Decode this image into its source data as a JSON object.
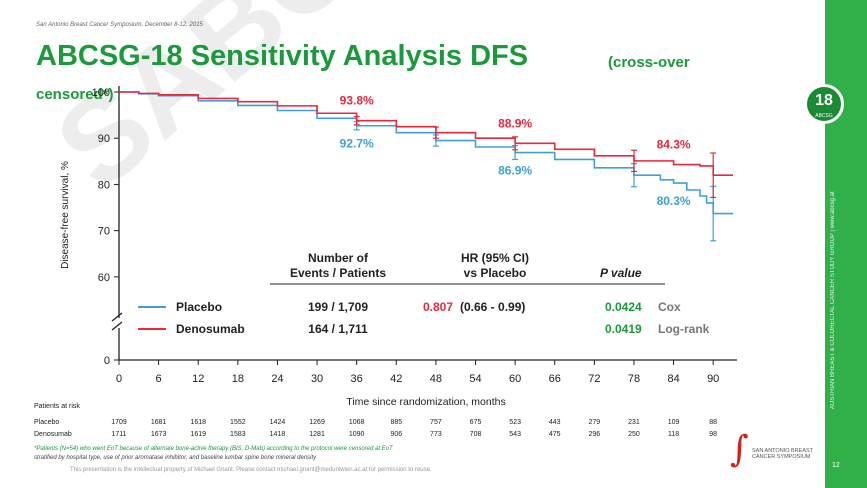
{
  "header_small": "San Antonio Breast Cancer Symposium, December 8-12, 2015",
  "title": "ABCSG-18 Sensitivity Analysis DFS",
  "title_sub_part1": "(cross-over",
  "title_sub_part2": "censored*)",
  "watermark": "SABCS",
  "badge": {
    "num": "18",
    "sub": "ABCSG"
  },
  "sidebar_text": "AUSTRIAN BREAST & COLORECTAL CANCER STUDY GROUP  |  www.abcsg.at",
  "slide_number": "12",
  "footnote1": "*Patients (N=54) who went EoT because of alternate bone-active therapy (BIS, D-Mab) according to the protocol were censored at EoT",
  "footnote2": "stratified by hospital type, use of prior aromatase inhibitor, and baseline lumbar spine bone mineral density",
  "footnote3": "This presentation is the intellectual property of Michael Gnant. Please contact michael.gnant@meduniwien.ac.at for permission to reuse.",
  "logo_text": "SAN ANTONIO BREAST CANCER SYMPOSIUM",
  "colors": {
    "placebo": "#3fa0d5",
    "denosumab": "#e8283c",
    "green": "#1a9a3a",
    "sidebar": "#31b04a"
  },
  "chart_data": {
    "type": "line",
    "title": "ABCSG-18 Sensitivity Analysis DFS (cross-over censored*)",
    "xlabel": "Time since randomization, months",
    "ylabel": "Disease-free survival, %",
    "xlim": [
      0,
      93
    ],
    "ylim_upper": [
      55,
      100
    ],
    "x_ticks": [
      0,
      6,
      12,
      18,
      24,
      30,
      36,
      42,
      48,
      54,
      60,
      66,
      72,
      78,
      84,
      90
    ],
    "y_ticks": [
      100,
      90,
      80,
      70,
      60,
      0
    ],
    "axis_break": true,
    "series": [
      {
        "name": "Placebo",
        "color": "#3fa0d5",
        "x": [
          0,
          3,
          6,
          12,
          18,
          24,
          30,
          36,
          42,
          48,
          54,
          60,
          66,
          72,
          78,
          82,
          84,
          86,
          88,
          89,
          90,
          93
        ],
        "y": [
          100,
          99.6,
          99.2,
          98.1,
          97.1,
          96.0,
          94.3,
          92.7,
          91.2,
          89.5,
          88.1,
          86.9,
          85.4,
          83.6,
          82.0,
          81.0,
          80.3,
          78.8,
          77.5,
          76.0,
          73.7,
          73.7
        ]
      },
      {
        "name": "Denosumab",
        "color": "#e8283c",
        "x": [
          0,
          3,
          6,
          12,
          18,
          24,
          30,
          36,
          42,
          48,
          54,
          60,
          66,
          72,
          78,
          84,
          88,
          90,
          93
        ],
        "y": [
          100,
          99.7,
          99.4,
          98.6,
          97.9,
          97.0,
          95.4,
          93.8,
          92.5,
          91.2,
          90.0,
          88.9,
          87.6,
          86.2,
          85.1,
          84.3,
          84.0,
          82.0,
          82.0
        ]
      }
    ],
    "error_bars": [
      {
        "series": "Placebo",
        "x": [
          36,
          48,
          60,
          78,
          90
        ],
        "lo": [
          91.8,
          88.3,
          85.4,
          79.5,
          67.8
        ],
        "hi": [
          93.6,
          90.7,
          88.4,
          84.5,
          79.6
        ]
      },
      {
        "series": "Denosumab",
        "x": [
          36,
          48,
          60,
          78,
          90
        ],
        "lo": [
          92.9,
          90.0,
          87.5,
          82.8,
          77.2
        ],
        "hi": [
          94.7,
          92.4,
          90.3,
          87.4,
          86.8
        ]
      }
    ],
    "annotations": [
      {
        "text": "93.8%",
        "series": "Denosumab",
        "x": 36,
        "y": 93.8
      },
      {
        "text": "92.7%",
        "series": "Placebo",
        "x": 36,
        "y": 92.7
      },
      {
        "text": "88.9%",
        "series": "Denosumab",
        "x": 60,
        "y": 88.9
      },
      {
        "text": "86.9%",
        "series": "Placebo",
        "x": 60,
        "y": 86.9
      },
      {
        "text": "84.3%",
        "series": "Denosumab",
        "x": 84,
        "y": 84.3
      },
      {
        "text": "80.3%",
        "series": "Placebo",
        "x": 84,
        "y": 80.3
      }
    ],
    "legend_table": {
      "col1_header_line1": "Number of",
      "col1_header_line2": "Events / Patients",
      "col2_header_line1": "HR (95% CI)",
      "col2_header_line2": "vs Placebo",
      "col3_header": "P value",
      "rows": [
        {
          "name": "Placebo",
          "events": "199 / 1,709"
        },
        {
          "name": "Denosumab",
          "events": "164 / 1,711"
        }
      ],
      "hr_value": "0.807",
      "hr_ci": "(0.66 - 0.99)",
      "p_values": [
        {
          "value": "0.0424",
          "test": "Cox"
        },
        {
          "value": "0.0419",
          "test": "Log-rank"
        }
      ]
    },
    "at_risk": {
      "label": "Patients at risk",
      "rows": [
        {
          "name": "Placebo",
          "values": [
            "1709",
            "1681",
            "1618",
            "1552",
            "1424",
            "1269",
            "1068",
            "885",
            "757",
            "675",
            "523",
            "443",
            "279",
            "231",
            "109",
            "88"
          ]
        },
        {
          "name": "Denosumab",
          "values": [
            "1711",
            "1673",
            "1619",
            "1583",
            "1418",
            "1281",
            "1090",
            "906",
            "773",
            "708",
            "543",
            "475",
            "296",
            "250",
            "118",
            "98"
          ]
        }
      ]
    }
  }
}
